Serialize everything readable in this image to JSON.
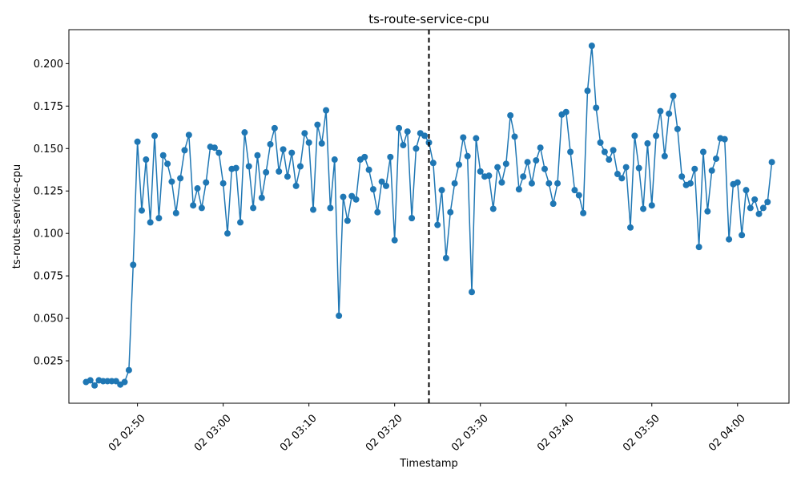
{
  "chart_data": {
    "type": "line",
    "title": "ts-route-service-cpu",
    "xlabel": "Timestamp",
    "ylabel": "ts-route-service-cpu",
    "ylim": [
      0.0,
      0.22
    ],
    "xlim": [
      "02 02:42",
      "02 04:06"
    ],
    "grid": false,
    "marker": "circle",
    "line_color": "#1f77b4",
    "yticks": [
      0.025,
      0.05,
      0.075,
      0.1,
      0.125,
      0.15,
      0.175,
      0.2
    ],
    "ytick_labels": [
      "0.025",
      "0.050",
      "0.075",
      "0.100",
      "0.125",
      "0.150",
      "0.175",
      "0.200"
    ],
    "xticks": [
      "02 02:50",
      "02 03:00",
      "02 03:10",
      "02 03:20",
      "02 03:30",
      "02 03:40",
      "02 03:50",
      "02 04:00"
    ],
    "xtick_labels": [
      "02 02:50",
      "02 03:00",
      "02 03:10",
      "02 03:20",
      "02 03:30",
      "02 03:40",
      "02 03:50",
      "02 04:00"
    ],
    "vline": {
      "x": "02 03:24",
      "style": "dashed",
      "color": "#000000"
    },
    "series": [
      {
        "start": "02 02:44",
        "step_minutes": 0.5,
        "values": [
          0.0125,
          0.0135,
          0.0105,
          0.0135,
          0.013,
          0.013,
          0.013,
          0.013,
          0.011,
          0.0125,
          0.0195,
          0.0815,
          0.154,
          0.1135,
          0.1435,
          0.1065,
          0.1575,
          0.109,
          0.146,
          0.141,
          0.1305,
          0.112,
          0.1325,
          0.149,
          0.158,
          0.1165,
          0.1265,
          0.115,
          0.13,
          0.151,
          0.1505,
          0.1475,
          0.1295,
          0.1,
          0.138,
          0.1385,
          0.1065,
          0.1595,
          0.1395,
          0.115,
          0.146,
          0.121,
          0.136,
          0.1525,
          0.162,
          0.1365,
          0.1495,
          0.1335,
          0.1475,
          0.128,
          0.1395,
          0.159,
          0.1535,
          0.114,
          0.164,
          0.153,
          0.1725,
          0.115,
          0.1435,
          0.0515,
          0.1215,
          0.1075,
          0.122,
          0.12,
          0.1435,
          0.145,
          0.1375,
          0.126,
          0.1125,
          0.1305,
          0.128,
          0.145,
          0.096,
          0.162,
          0.152,
          0.16,
          0.109,
          0.15,
          0.159,
          0.1575,
          0.1535,
          0.1415,
          0.105,
          0.1255,
          0.0855,
          0.1125,
          0.1295,
          0.1405,
          0.1565,
          0.1455,
          0.0655,
          0.156,
          0.1365,
          0.1335,
          0.134,
          0.1145,
          0.139,
          0.13,
          0.141,
          0.1695,
          0.157,
          0.126,
          0.1335,
          0.142,
          0.1295,
          0.143,
          0.1505,
          0.138,
          0.1295,
          0.1175,
          0.1295,
          0.17,
          0.1715,
          0.148,
          0.1255,
          0.1225,
          0.112,
          0.184,
          0.2105,
          0.174,
          0.1535,
          0.148,
          0.1435,
          0.149,
          0.135,
          0.1325,
          0.139,
          0.1035,
          0.1575,
          0.1385,
          0.1145,
          0.153,
          0.1165,
          0.1575,
          0.172,
          0.1455,
          0.1705,
          0.181,
          0.1615,
          0.1335,
          0.1285,
          0.1295,
          0.138,
          0.092,
          0.148,
          0.113,
          0.137,
          0.144,
          0.156,
          0.1555,
          0.0965,
          0.129,
          0.13,
          0.099,
          0.1255,
          0.115,
          0.12,
          0.1115,
          0.115,
          0.1185,
          0.142
        ]
      }
    ]
  }
}
